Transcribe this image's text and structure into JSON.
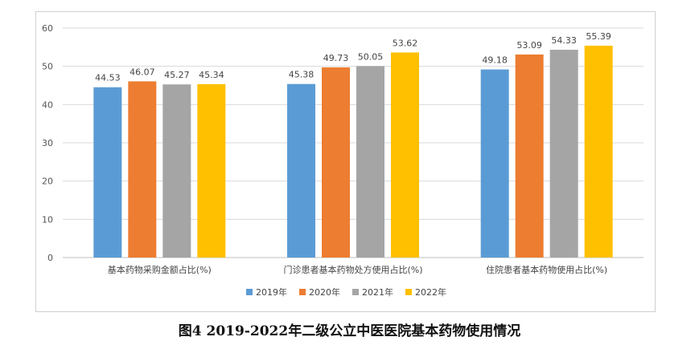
{
  "caption": "图4 2019-2022年二级公立中医医院基本药物使用情况",
  "chart_data": {
    "type": "bar",
    "categories": [
      "基本药物采购金额占比(%)",
      "门诊患者基本药物处方使用占比(%)",
      "住院患者基本药物使用占比(%)"
    ],
    "series": [
      {
        "name": "2019年",
        "color": "#5B9BD5",
        "values": [
          44.53,
          45.38,
          49.18
        ]
      },
      {
        "name": "2020年",
        "color": "#ED7D31",
        "values": [
          46.07,
          49.73,
          53.09
        ]
      },
      {
        "name": "2021年",
        "color": "#A5A5A5",
        "values": [
          45.27,
          50.05,
          54.33
        ]
      },
      {
        "name": "2022年",
        "color": "#FFC000",
        "values": [
          45.34,
          53.62,
          55.39
        ]
      }
    ],
    "value_labels": [
      [
        "44.53",
        "45.38",
        "49.18"
      ],
      [
        "46.07",
        "49.73",
        "53.09"
      ],
      [
        "45.27",
        "50.05",
        "54.33"
      ],
      [
        "45.34",
        "53.62",
        "55.39"
      ]
    ],
    "ylim": [
      0,
      60
    ],
    "yticks": [
      0,
      10,
      20,
      30,
      40,
      50,
      60
    ],
    "ytick_labels": [
      "0",
      "10",
      "20",
      "30",
      "40",
      "50",
      "60"
    ],
    "grid": true,
    "legend": "bottom"
  }
}
